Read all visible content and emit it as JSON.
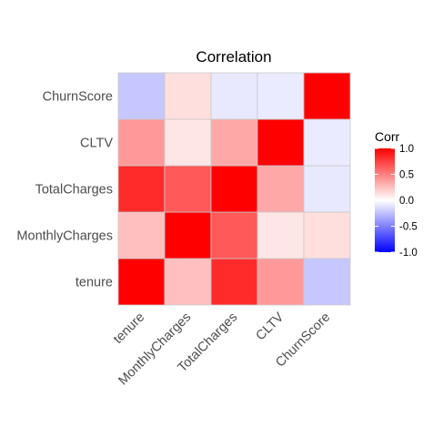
{
  "chart_data": {
    "type": "heatmap",
    "title": "Correlation",
    "variables": [
      "tenure",
      "MonthlyCharges",
      "TotalCharges",
      "CLTV",
      "ChurnScore"
    ],
    "matrix": [
      [
        1.0,
        0.25,
        0.83,
        0.4,
        -0.22
      ],
      [
        0.25,
        1.0,
        0.65,
        0.1,
        0.13
      ],
      [
        0.83,
        0.65,
        1.0,
        0.34,
        -0.09
      ],
      [
        0.4,
        0.1,
        0.34,
        1.0,
        -0.08
      ],
      [
        -0.22,
        0.13,
        -0.09,
        -0.08,
        1.0
      ]
    ],
    "x_order": [
      "tenure",
      "MonthlyCharges",
      "TotalCharges",
      "CLTV",
      "ChurnScore"
    ],
    "y_order_bottom_to_top": [
      "tenure",
      "MonthlyCharges",
      "TotalCharges",
      "CLTV",
      "ChurnScore"
    ],
    "legend": {
      "title": "Corr",
      "ticks": [
        {
          "value": 1.0,
          "label": "1.0"
        },
        {
          "value": 0.5,
          "label": "0.5"
        },
        {
          "value": 0.0,
          "label": "0.0"
        },
        {
          "value": -0.5,
          "label": "-0.5"
        },
        {
          "value": -1.0,
          "label": "-1.0"
        }
      ],
      "limits": [
        -1,
        1
      ],
      "placement": "right"
    },
    "colors": {
      "low": "#0000ff",
      "mid": "#ffffff",
      "high": "#ff0000"
    },
    "grid": true
  }
}
